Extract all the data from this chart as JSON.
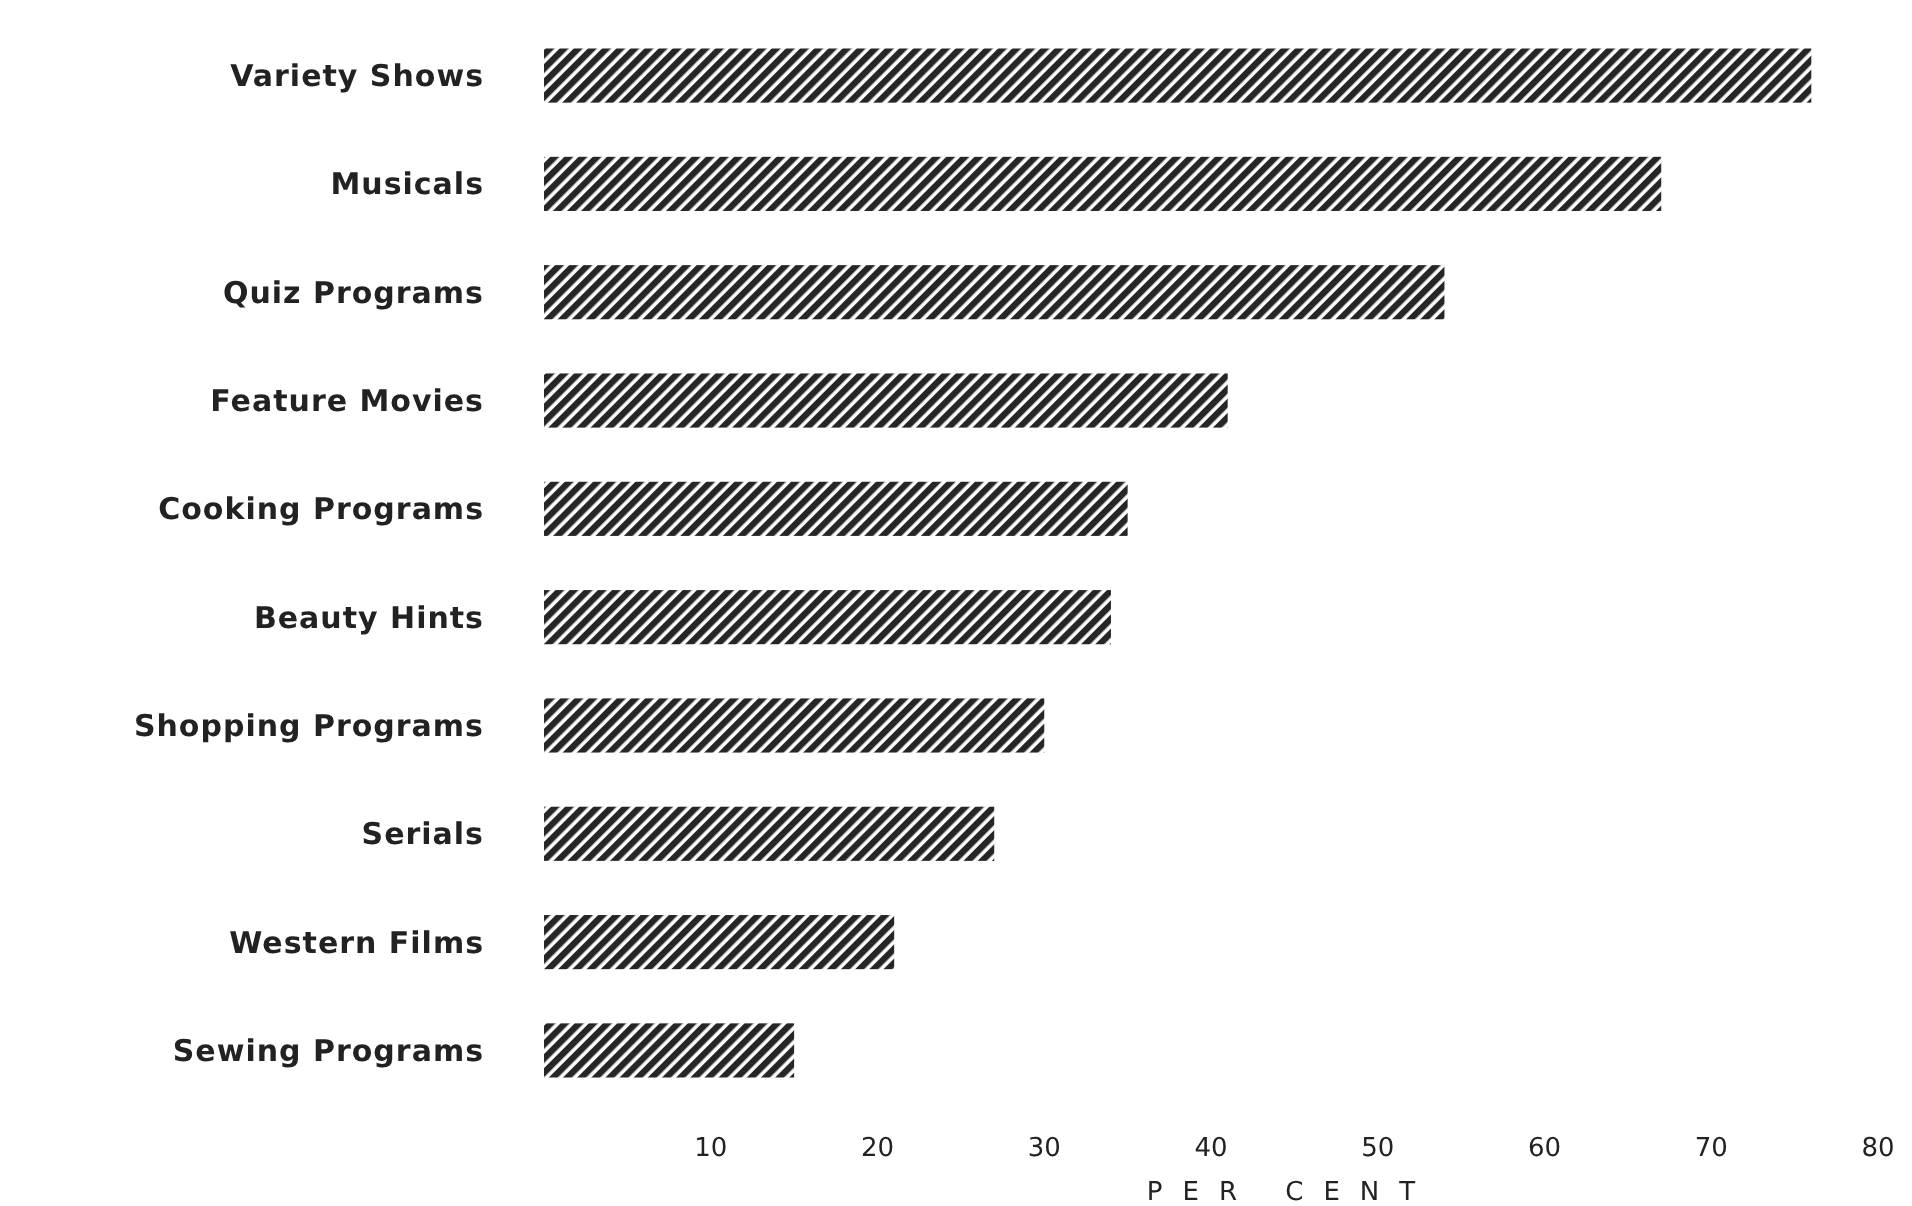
{
  "chart_data": {
    "type": "bar",
    "orientation": "horizontal",
    "xlabel": "PER CENT",
    "categories": [
      "Variety Shows",
      "Musicals",
      "Quiz Programs",
      "Feature Movies",
      "Cooking Programs",
      "Beauty Hints",
      "Shopping Programs",
      "Serials",
      "Western Films",
      "Sewing Programs"
    ],
    "values": [
      76,
      67,
      54,
      41,
      35,
      34,
      30,
      27,
      21,
      15
    ],
    "color": "#262626",
    "xlim": [
      0,
      80
    ],
    "xticks": [
      10,
      20,
      30,
      40,
      50,
      60,
      70,
      80
    ],
    "grid": false
  }
}
